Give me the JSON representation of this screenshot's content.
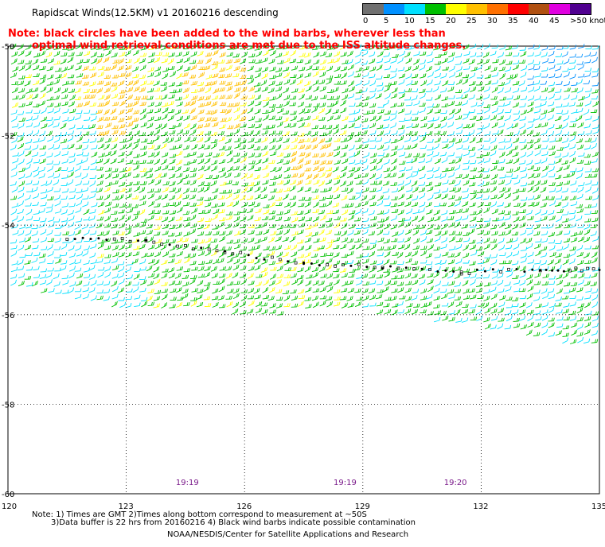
{
  "header": {
    "title": "Rapidscat Winds(12.5KM) v1 20160216 descending"
  },
  "warning": {
    "line1": "Note: black circles have been added to the wind barbs, wherever less than",
    "line2": "optimal wind retrieval conditions are met due to the ISS altitude changes."
  },
  "legend": {
    "labels": [
      "0",
      "5",
      "10",
      "15",
      "20",
      "25",
      "30",
      "35",
      "40",
      "45",
      ">50 knots"
    ],
    "colors": [
      "#707070",
      "#0090ff",
      "#00e0ff",
      "#00c000",
      "#ffff00",
      "#ffc000",
      "#ff7000",
      "#ff0000",
      "#b05010",
      "#e000e0",
      "#500090"
    ]
  },
  "map": {
    "lon_ticks": [
      "120",
      "123",
      "126",
      "129",
      "132",
      "135"
    ],
    "lat_ticks": [
      "-50",
      "-52",
      "-54",
      "-56",
      "-58",
      "-60"
    ],
    "time_labels": [
      {
        "text": "19:19",
        "lon": 124.5
      },
      {
        "text": "19:19",
        "lon": 128.5
      },
      {
        "text": "19:20",
        "lon": 131.3
      }
    ],
    "swath": {
      "lon_range": [
        120,
        135
      ],
      "north_lat": -50,
      "south_edge": [
        [
          120,
          -55.4
        ],
        [
          123,
          -55.9
        ],
        [
          126,
          -56.0
        ],
        [
          129,
          -55.95
        ],
        [
          132,
          -56.3
        ],
        [
          135,
          -56.8
        ]
      ]
    },
    "contamination_line": [
      [
        121.5,
        -54.3
      ],
      [
        123.5,
        -54.35
      ],
      [
        125.5,
        -54.6
      ],
      [
        127.5,
        -54.85
      ],
      [
        129.5,
        -54.95
      ],
      [
        131.5,
        -55.05
      ],
      [
        133.5,
        -55.0
      ],
      [
        135,
        -55.0
      ]
    ]
  },
  "footer": {
    "note1": "Note: 1) Times are GMT 2)Times along bottom correspond to measurement at ~50S",
    "note2": "3)Data buffer is 22 hrs from 20160216 4) Black wind barbs indicate possible contamination",
    "credit": "NOAA/NESDIS/Center for Satellite Applications and Research"
  }
}
